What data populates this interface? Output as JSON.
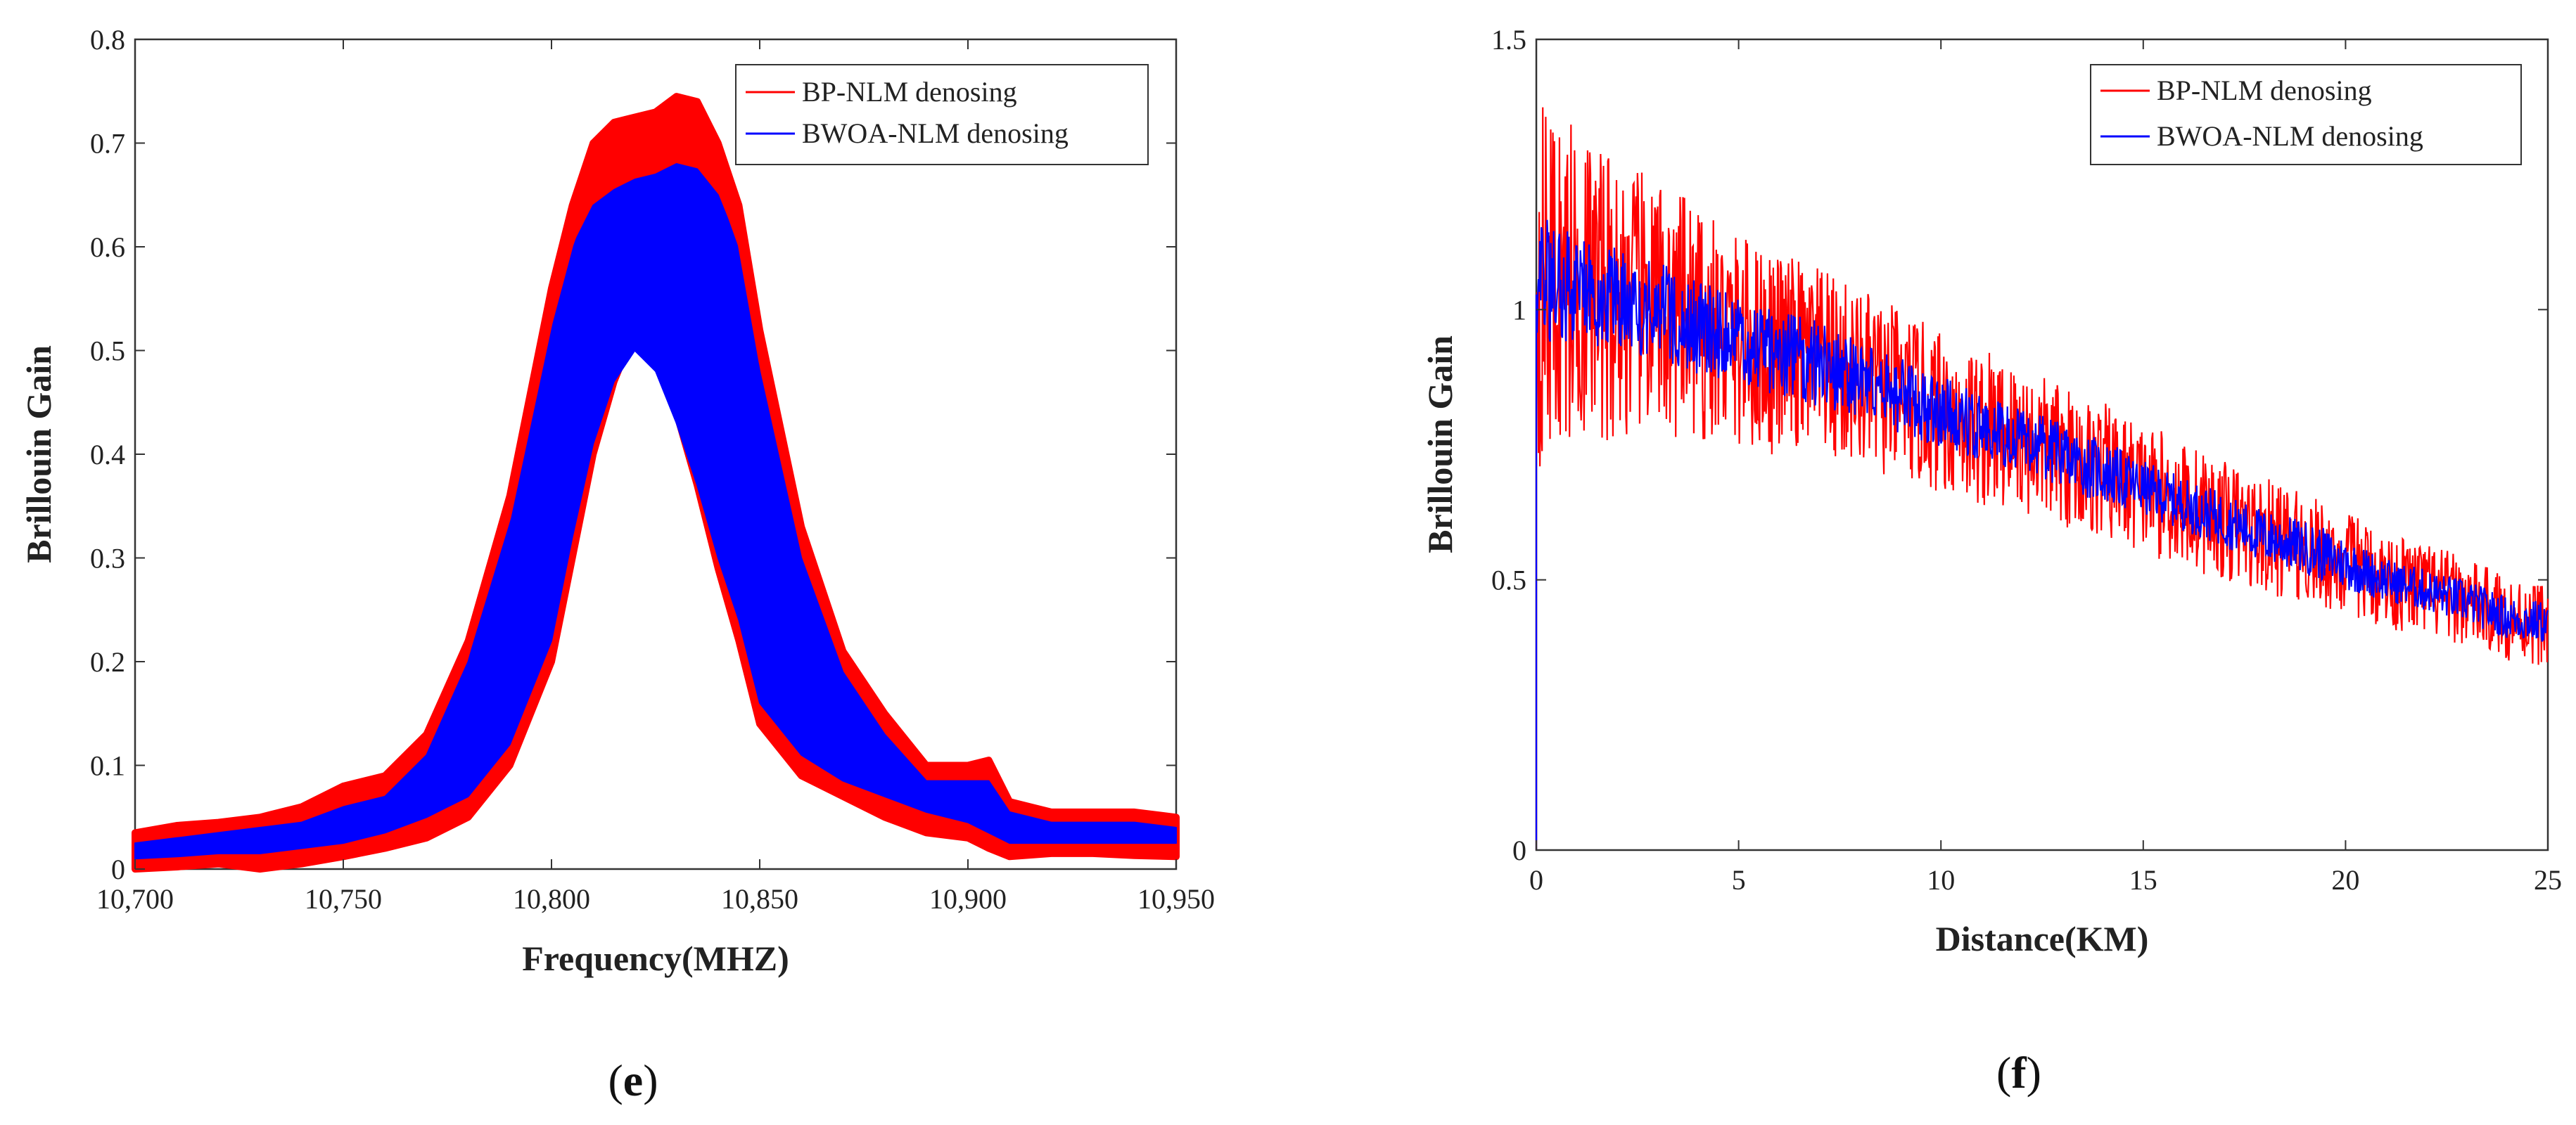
{
  "chart_data": [
    {
      "type": "line",
      "panel_label": "e",
      "title": "",
      "xlabel": "Frequency(MHZ)",
      "ylabel": "Brillouin Gain",
      "xlim": [
        10700,
        10950
      ],
      "ylim": [
        0,
        0.8
      ],
      "x_ticks": [
        10700,
        10750,
        10800,
        10850,
        10900,
        10950
      ],
      "x_tick_labels": [
        "10,700",
        "10,750",
        "10,800",
        "10,850",
        "10,900",
        "10,950"
      ],
      "y_ticks": [
        0,
        0.1,
        0.2,
        0.3,
        0.4,
        0.5,
        0.6,
        0.7,
        0.8
      ],
      "y_tick_labels": [
        "0",
        "0.1",
        "0.2",
        "0.3",
        "0.4",
        "0.5",
        "0.6",
        "0.7",
        "0.8"
      ],
      "grid": false,
      "legend_position": "top-right",
      "series": [
        {
          "name": "BP-NLM denosing",
          "color": "#ff0000",
          "x": [
            10700,
            10710,
            10720,
            10730,
            10740,
            10750,
            10760,
            10770,
            10780,
            10790,
            10800,
            10805,
            10810,
            10815,
            10820,
            10825,
            10830,
            10835,
            10840,
            10845,
            10850,
            10860,
            10870,
            10880,
            10890,
            10900,
            10905,
            10910,
            10920,
            10930,
            10940,
            10950
          ],
          "upper": [
            0.035,
            0.042,
            0.045,
            0.05,
            0.06,
            0.08,
            0.09,
            0.13,
            0.22,
            0.36,
            0.56,
            0.64,
            0.7,
            0.72,
            0.725,
            0.73,
            0.745,
            0.74,
            0.7,
            0.64,
            0.52,
            0.33,
            0.21,
            0.15,
            0.1,
            0.1,
            0.105,
            0.065,
            0.055,
            0.055,
            0.055,
            0.05
          ],
          "lower": [
            0.0,
            0.002,
            0.005,
            0.0,
            0.005,
            0.012,
            0.02,
            0.03,
            0.05,
            0.1,
            0.2,
            0.3,
            0.4,
            0.47,
            0.52,
            0.5,
            0.44,
            0.37,
            0.29,
            0.22,
            0.14,
            0.09,
            0.07,
            0.05,
            0.035,
            0.03,
            0.02,
            0.012,
            0.015,
            0.015,
            0.013,
            0.012
          ]
        },
        {
          "name": "BWOA-NLM denosing",
          "color": "#0000ff",
          "x": [
            10700,
            10710,
            10720,
            10730,
            10740,
            10750,
            10760,
            10770,
            10780,
            10790,
            10800,
            10805,
            10810,
            10815,
            10820,
            10825,
            10830,
            10835,
            10840,
            10845,
            10850,
            10860,
            10870,
            10880,
            10890,
            10900,
            10905,
            10910,
            10920,
            10930,
            10940,
            10950
          ],
          "upper": [
            0.025,
            0.03,
            0.035,
            0.04,
            0.045,
            0.06,
            0.07,
            0.11,
            0.2,
            0.34,
            0.54,
            0.6,
            0.64,
            0.655,
            0.665,
            0.67,
            0.68,
            0.675,
            0.65,
            0.6,
            0.48,
            0.3,
            0.19,
            0.13,
            0.085,
            0.085,
            0.085,
            0.055,
            0.045,
            0.045,
            0.045,
            0.04
          ],
          "lower": [
            0.01,
            0.012,
            0.015,
            0.015,
            0.02,
            0.025,
            0.035,
            0.05,
            0.07,
            0.12,
            0.22,
            0.32,
            0.41,
            0.47,
            0.5,
            0.48,
            0.43,
            0.37,
            0.3,
            0.24,
            0.16,
            0.11,
            0.085,
            0.07,
            0.055,
            0.045,
            0.035,
            0.025,
            0.025,
            0.025,
            0.025,
            0.025
          ]
        }
      ]
    },
    {
      "type": "line",
      "panel_label": "f",
      "title": "",
      "xlabel": "Distance(KM)",
      "ylabel": "Brillouin Gain",
      "xlim": [
        0,
        25
      ],
      "ylim": [
        0,
        1.5
      ],
      "x_ticks": [
        0,
        5,
        10,
        15,
        20,
        25
      ],
      "x_tick_labels": [
        "0",
        "5",
        "10",
        "15",
        "20",
        "25"
      ],
      "y_ticks": [
        0,
        0.5,
        1,
        1.5
      ],
      "y_tick_labels": [
        "0",
        "0.5",
        "1",
        "1.5"
      ],
      "grid": false,
      "legend_position": "top-right",
      "series": [
        {
          "name": "BP-NLM denosing",
          "color": "#ff0000",
          "x": [
            0,
            1,
            2,
            3,
            4,
            5,
            6,
            7,
            8,
            9,
            10,
            11,
            12,
            13,
            14,
            15,
            16,
            17,
            18,
            19,
            20,
            21,
            22,
            23,
            24,
            25
          ],
          "mean": [
            1.05,
            1.05,
            1.02,
            1.0,
            0.97,
            0.94,
            0.92,
            0.9,
            0.87,
            0.84,
            0.81,
            0.78,
            0.76,
            0.73,
            0.7,
            0.67,
            0.64,
            0.61,
            0.58,
            0.56,
            0.53,
            0.5,
            0.48,
            0.46,
            0.43,
            0.42
          ],
          "spread": [
            0.35,
            0.3,
            0.26,
            0.24,
            0.22,
            0.2,
            0.19,
            0.18,
            0.17,
            0.16,
            0.15,
            0.15,
            0.14,
            0.13,
            0.13,
            0.12,
            0.12,
            0.11,
            0.11,
            0.1,
            0.1,
            0.09,
            0.09,
            0.08,
            0.08,
            0.08
          ]
        },
        {
          "name": "BWOA-NLM denosing",
          "color": "#0000ff",
          "x": [
            0,
            1,
            2,
            3,
            4,
            5,
            6,
            7,
            8,
            9,
            10,
            11,
            12,
            13,
            14,
            15,
            16,
            17,
            18,
            19,
            20,
            21,
            22,
            23,
            24,
            25
          ],
          "mean": [
            1.05,
            1.05,
            1.02,
            1.0,
            0.97,
            0.94,
            0.92,
            0.9,
            0.87,
            0.84,
            0.81,
            0.78,
            0.76,
            0.73,
            0.7,
            0.67,
            0.64,
            0.61,
            0.58,
            0.56,
            0.53,
            0.5,
            0.48,
            0.46,
            0.43,
            0.42
          ],
          "spread": [
            0.12,
            0.11,
            0.1,
            0.09,
            0.09,
            0.08,
            0.08,
            0.08,
            0.07,
            0.07,
            0.07,
            0.06,
            0.06,
            0.06,
            0.06,
            0.05,
            0.05,
            0.05,
            0.05,
            0.05,
            0.05,
            0.04,
            0.04,
            0.04,
            0.04,
            0.04
          ]
        }
      ]
    }
  ]
}
